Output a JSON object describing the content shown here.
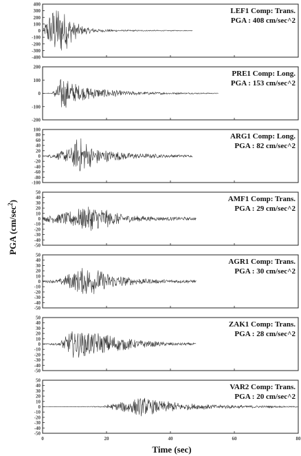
{
  "chart_data": {
    "type": "line",
    "xlabel": "Time (sec)",
    "ylabel": "PGA (cm/sec",
    "ylabel_sup": "2",
    "ylabel_close": ")",
    "xlim": [
      0,
      80
    ],
    "xticks": [
      0,
      20,
      40,
      60,
      80
    ],
    "trace_color": "#333333",
    "panels": [
      {
        "station": "LEF1 Comp: Trans.",
        "pga": "PGA : 408 cm/sec^2",
        "ylim": [
          -400,
          400
        ],
        "yticks": [
          -400,
          -300,
          -200,
          -100,
          0,
          100,
          200,
          300,
          400
        ],
        "end": 47,
        "envelope": [
          [
            0,
            0
          ],
          [
            1,
            150
          ],
          [
            3,
            360
          ],
          [
            5,
            400
          ],
          [
            6,
            370
          ],
          [
            8,
            260
          ],
          [
            10,
            140
          ],
          [
            13,
            60
          ],
          [
            18,
            25
          ],
          [
            25,
            12
          ],
          [
            47,
            5
          ]
        ]
      },
      {
        "station": "PRE1 Comp: Long.",
        "pga": "PGA : 153 cm/sec^2",
        "ylim": [
          -200,
          200
        ],
        "yticks": [
          -200,
          -100,
          0,
          100,
          200
        ],
        "end": 55,
        "envelope": [
          [
            0,
            0
          ],
          [
            3,
            5
          ],
          [
            5,
            80
          ],
          [
            6,
            150
          ],
          [
            8,
            100
          ],
          [
            12,
            60
          ],
          [
            18,
            40
          ],
          [
            25,
            20
          ],
          [
            35,
            10
          ],
          [
            55,
            3
          ]
        ]
      },
      {
        "station": "ARG1 Comp: Long.",
        "pga": "PGA : 82 cm/sec^2",
        "ylim": [
          -100,
          100
        ],
        "yticks": [
          -100,
          -80,
          -60,
          -40,
          -20,
          0,
          20,
          40,
          60,
          80,
          100
        ],
        "end": 47,
        "envelope": [
          [
            0,
            0
          ],
          [
            2,
            5
          ],
          [
            5,
            15
          ],
          [
            9,
            35
          ],
          [
            11,
            80
          ],
          [
            13,
            60
          ],
          [
            16,
            35
          ],
          [
            22,
            20
          ],
          [
            30,
            10
          ],
          [
            47,
            4
          ]
        ]
      },
      {
        "station": "AMF1 Comp: Trans.",
        "pga": "PGA : 29 cm/sec^2",
        "ylim": [
          -50,
          50
        ],
        "yticks": [
          -50,
          -40,
          -30,
          -20,
          -10,
          0,
          10,
          20,
          30,
          40,
          50
        ],
        "end": 48,
        "envelope": [
          [
            0,
            4
          ],
          [
            4,
            10
          ],
          [
            8,
            14
          ],
          [
            12,
            22
          ],
          [
            16,
            28
          ],
          [
            20,
            18
          ],
          [
            26,
            8
          ],
          [
            35,
            4
          ],
          [
            48,
            3
          ]
        ]
      },
      {
        "station": "AGR1 Comp: Trans.",
        "pga": "PGA : 30 cm/sec^2",
        "ylim": [
          -50,
          50
        ],
        "yticks": [
          -50,
          -40,
          -30,
          -20,
          -10,
          0,
          10,
          20,
          30,
          40,
          50
        ],
        "end": 48,
        "envelope": [
          [
            0,
            2
          ],
          [
            5,
            4
          ],
          [
            9,
            18
          ],
          [
            13,
            28
          ],
          [
            17,
            24
          ],
          [
            22,
            14
          ],
          [
            28,
            7
          ],
          [
            36,
            4
          ],
          [
            48,
            3
          ]
        ]
      },
      {
        "station": "ZAK1 Comp: Trans.",
        "pga": "PGA : 28 cm/sec^2",
        "ylim": [
          -50,
          50
        ],
        "yticks": [
          -50,
          -40,
          -30,
          -20,
          -10,
          0,
          10,
          20,
          30,
          40,
          50
        ],
        "end": 48,
        "envelope": [
          [
            0,
            1
          ],
          [
            5,
            3
          ],
          [
            9,
            26
          ],
          [
            13,
            27
          ],
          [
            18,
            22
          ],
          [
            24,
            14
          ],
          [
            30,
            8
          ],
          [
            38,
            4
          ],
          [
            48,
            2
          ]
        ]
      },
      {
        "station": "VAR2 Comp: Trans.",
        "pga": "PGA : 20 cm/sec^2",
        "ylim": [
          -50,
          50
        ],
        "yticks": [
          -50,
          -40,
          -30,
          -20,
          -10,
          0,
          10,
          20,
          30,
          40,
          50
        ],
        "end": 80,
        "envelope": [
          [
            0,
            0
          ],
          [
            18,
            1
          ],
          [
            22,
            6
          ],
          [
            27,
            14
          ],
          [
            31,
            20
          ],
          [
            36,
            12
          ],
          [
            45,
            7
          ],
          [
            55,
            4
          ],
          [
            70,
            2
          ],
          [
            80,
            1
          ]
        ]
      }
    ]
  }
}
